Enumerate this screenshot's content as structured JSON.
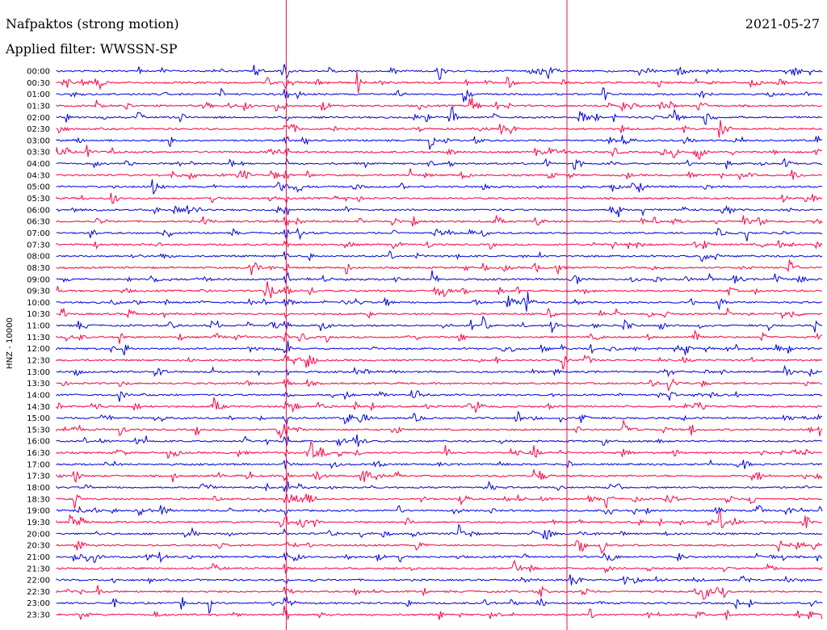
{
  "header": {
    "station": "Nafpaktos (strong motion)",
    "filter": "Applied filter: WWSSN-SP",
    "date": "2021-05-27"
  },
  "colors": {
    "blue": "#0000dd",
    "red": "#ff0044",
    "marker": "#e0104a"
  },
  "chart_data": {
    "type": "line",
    "title": "Nafpaktos (strong motion)",
    "subtitle": "Applied filter: WWSSN-SP",
    "date": "2021-05-27",
    "ylabel": "HNZ - 10000",
    "xlabel": "",
    "row_labels": [
      "00:00",
      "00:30",
      "01:00",
      "01:30",
      "02:00",
      "02:30",
      "03:00",
      "03:30",
      "04:00",
      "04:30",
      "05:00",
      "05:30",
      "06:00",
      "06:30",
      "07:00",
      "07:30",
      "08:00",
      "08:30",
      "09:00",
      "09:30",
      "10:00",
      "10:30",
      "11:00",
      "11:30",
      "12:00",
      "12:30",
      "13:00",
      "13:30",
      "14:00",
      "14:30",
      "15:00",
      "15:30",
      "16:00",
      "16:30",
      "17:00",
      "17:30",
      "18:00",
      "18:30",
      "19:00",
      "19:30",
      "20:00",
      "20:30",
      "21:00",
      "21:30",
      "22:00",
      "22:30",
      "23:00",
      "23:30"
    ],
    "row_minutes": 30,
    "series_colors_alternate": [
      "blue",
      "red"
    ],
    "event_markers_min_into_row": [
      9.0,
      20.0
    ],
    "major_event": {
      "row": "18:30",
      "minute_into_row": 9.0
    }
  }
}
